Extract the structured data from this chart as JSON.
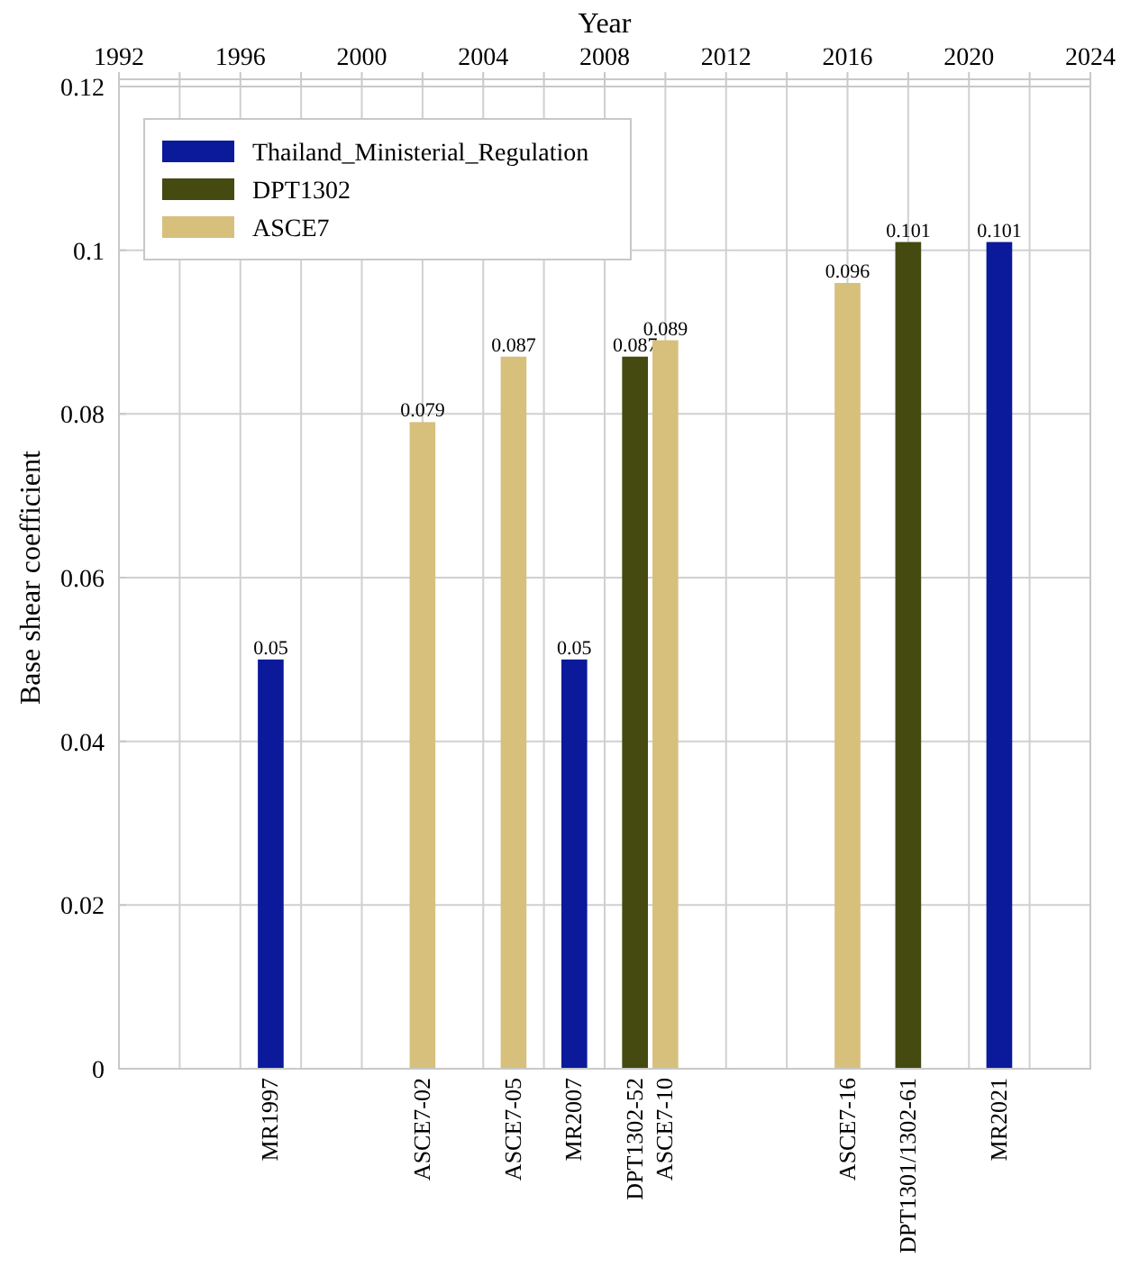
{
  "chart_data": {
    "type": "bar",
    "xlabel": "Year",
    "ylabel": "Base shear coefficient",
    "xlim": [
      1992,
      2024
    ],
    "xticks": [
      1992,
      {
        "value": 1994,
        "label": null
      },
      1996,
      {
        "value": 1998,
        "label": null
      },
      2000,
      {
        "value": 2002,
        "label": null
      },
      2004,
      {
        "value": 2006,
        "label": null
      },
      2008,
      {
        "value": 2010,
        "label": null
      },
      2012,
      {
        "value": 2014,
        "label": null
      },
      2016,
      {
        "value": 2018,
        "label": null
      },
      2020,
      {
        "value": 2022,
        "label": null
      },
      2024
    ],
    "ylim": [
      0,
      0.12
    ],
    "yticks": [
      0,
      0.02,
      0.04,
      0.06,
      0.08,
      0.1,
      0.12
    ],
    "series": [
      {
        "name": "Thailand_Ministerial_Regulation",
        "color": "#0a1a9a",
        "x": [
          1997,
          2007,
          2021
        ],
        "values": [
          0.05,
          0.05,
          0.101
        ]
      },
      {
        "name": "DPT1302",
        "color": "#444a10",
        "x": [
          2009,
          2018
        ],
        "values": [
          0.087,
          0.101
        ]
      },
      {
        "name": "ASCE7",
        "color": "#d6c07c",
        "x": [
          2002,
          2005,
          2010,
          2016
        ],
        "values": [
          0.079,
          0.087,
          0.089,
          0.096
        ]
      }
    ],
    "annotations": [
      {
        "text": "MR1997",
        "x": 1997,
        "y": 0
      },
      {
        "text": "ASCE7-02",
        "x": 2002,
        "y": 0
      },
      {
        "text": "ASCE7-05",
        "x": 2005,
        "y": 0
      },
      {
        "text": "MR2007",
        "x": 2007,
        "y": 0
      },
      {
        "text": "DPT1302-52",
        "x": 2009,
        "y": 0
      },
      {
        "text": "ASCE7-10",
        "x": 2010,
        "y": 0
      },
      {
        "text": "ASCE7-16",
        "x": 2016,
        "y": 0
      },
      {
        "text": "DPT1301/1302-61",
        "x": 2018,
        "y": 0
      },
      {
        "text": "MR2021",
        "x": 2021,
        "y": 0
      }
    ],
    "data_labels": true,
    "grid": true,
    "legend": "top left"
  }
}
